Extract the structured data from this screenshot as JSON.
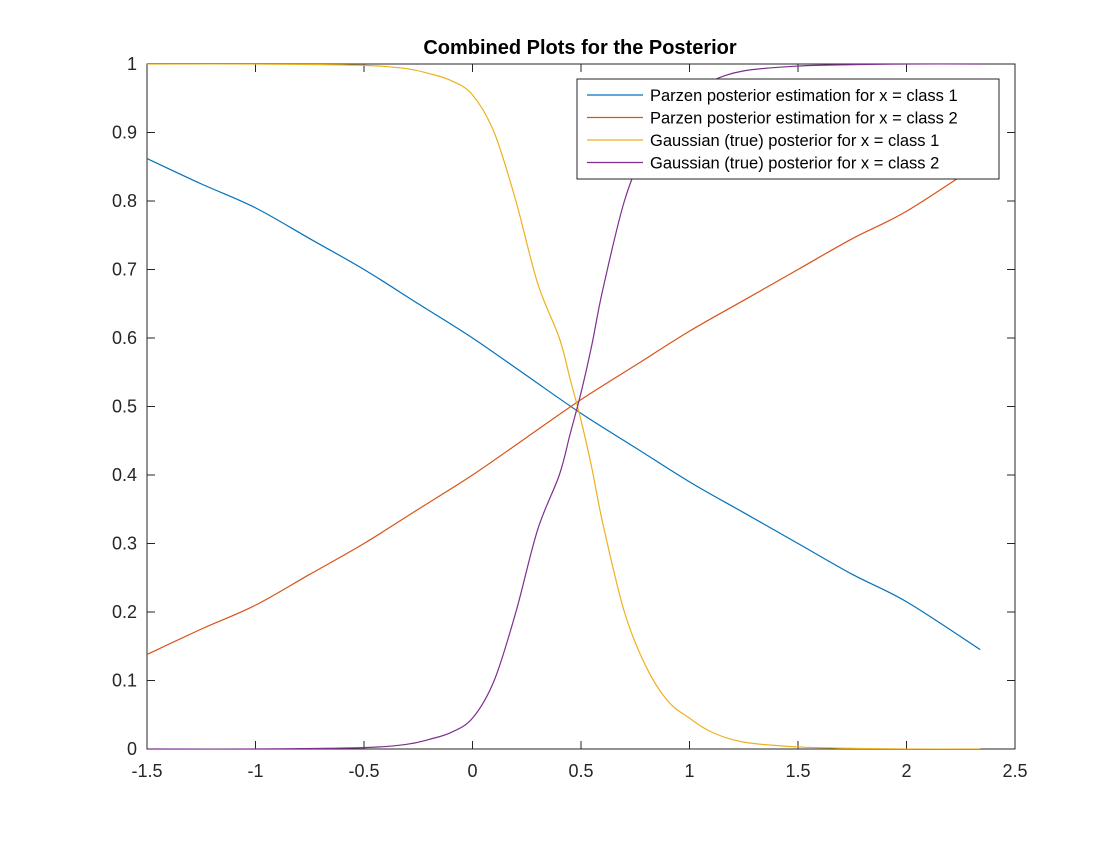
{
  "chart_data": {
    "type": "line",
    "title": "Combined Plots for the Posterior",
    "xlabel": "",
    "ylabel": "",
    "xlim": [
      -1.5,
      2.5
    ],
    "ylim": [
      0,
      1
    ],
    "xticks": [
      "-1.5",
      "-1",
      "-0.5",
      "0",
      "0.5",
      "1",
      "1.5",
      "2",
      "2.5"
    ],
    "yticks": [
      "0",
      "0.1",
      "0.2",
      "0.3",
      "0.4",
      "0.5",
      "0.6",
      "0.7",
      "0.8",
      "0.9",
      "1"
    ],
    "grid": false,
    "legend_position": "top-right",
    "series": [
      {
        "name": "Parzen posterior estimation for x = class 1",
        "color": "#0072BD",
        "x": [
          -1.5,
          -1.25,
          -1.0,
          -0.75,
          -0.5,
          -0.25,
          0.0,
          0.25,
          0.5,
          0.75,
          1.0,
          1.25,
          1.5,
          1.75,
          2.0,
          2.34
        ],
        "y": [
          0.862,
          0.825,
          0.79,
          0.745,
          0.7,
          0.65,
          0.6,
          0.545,
          0.49,
          0.44,
          0.39,
          0.345,
          0.3,
          0.255,
          0.215,
          0.145
        ]
      },
      {
        "name": "Parzen posterior estimation for x = class 2",
        "color": "#D95319",
        "x": [
          -1.5,
          -1.25,
          -1.0,
          -0.75,
          -0.5,
          -0.25,
          0.0,
          0.25,
          0.5,
          0.75,
          1.0,
          1.25,
          1.5,
          1.75,
          2.0,
          2.34
        ],
        "y": [
          0.138,
          0.175,
          0.21,
          0.255,
          0.3,
          0.35,
          0.4,
          0.455,
          0.51,
          0.56,
          0.61,
          0.655,
          0.7,
          0.745,
          0.785,
          0.855
        ]
      },
      {
        "name": "Gaussian (true) posterior for x = class 1",
        "color": "#EDB120",
        "x": [
          -1.5,
          -1.0,
          -0.5,
          -0.3,
          -0.2,
          -0.1,
          0.0,
          0.1,
          0.2,
          0.3,
          0.4,
          0.45,
          0.5,
          0.55,
          0.6,
          0.7,
          0.8,
          0.9,
          1.0,
          1.1,
          1.25,
          1.5,
          1.75,
          2.0,
          2.34
        ],
        "y": [
          1.0,
          1.0,
          0.998,
          0.993,
          0.986,
          0.976,
          0.955,
          0.9,
          0.8,
          0.68,
          0.6,
          0.54,
          0.48,
          0.41,
          0.33,
          0.2,
          0.12,
          0.07,
          0.045,
          0.025,
          0.01,
          0.003,
          0.001,
          0.0,
          0.0
        ]
      },
      {
        "name": "Gaussian (true) posterior for x = class 2",
        "color": "#7E2F8E",
        "x": [
          -1.5,
          -1.0,
          -0.5,
          -0.3,
          -0.2,
          -0.1,
          0.0,
          0.1,
          0.2,
          0.3,
          0.4,
          0.45,
          0.5,
          0.55,
          0.6,
          0.7,
          0.8,
          0.9,
          1.0,
          1.1,
          1.25,
          1.5,
          1.75,
          2.0,
          2.34
        ],
        "y": [
          0.0,
          0.0,
          0.002,
          0.007,
          0.014,
          0.024,
          0.045,
          0.1,
          0.2,
          0.32,
          0.4,
          0.46,
          0.52,
          0.59,
          0.67,
          0.8,
          0.88,
          0.93,
          0.955,
          0.975,
          0.99,
          0.997,
          0.999,
          1.0,
          1.0
        ]
      }
    ]
  }
}
